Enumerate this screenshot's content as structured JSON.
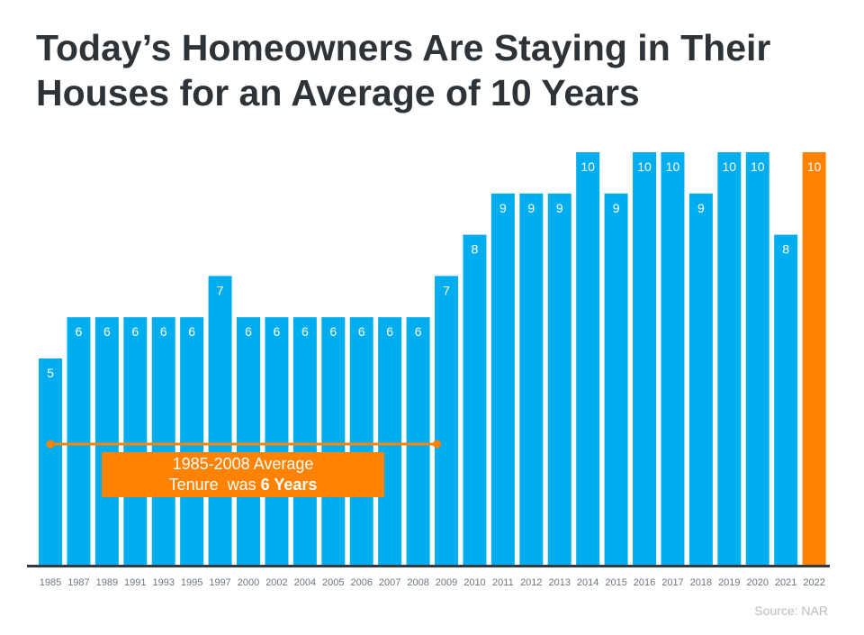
{
  "title_line1": "Today’s Homeowners Are Staying in Their",
  "title_line2": "Houses for an Average of 10 Years",
  "source": "Source: NAR",
  "annotation": {
    "line1": "1985-2008 Average",
    "line2_prefix": "Tenure  was ",
    "line2_bold": "6 Years",
    "average_value": 6,
    "range": [
      "1985",
      "2008"
    ]
  },
  "colors": {
    "bar": "#00aeef",
    "highlight": "#ff8200",
    "axis": "#333940",
    "title": "#2e3338"
  },
  "chart_data": {
    "type": "bar",
    "categories": [
      "1985",
      "1987",
      "1989",
      "1991",
      "1993",
      "1995",
      "1997",
      "2000",
      "2002",
      "2004",
      "2005",
      "2006",
      "2007",
      "2008",
      "2009",
      "2010",
      "2011",
      "2012",
      "2013",
      "2014",
      "2015",
      "2016",
      "2017",
      "2018",
      "2019",
      "2020",
      "2021",
      "2022"
    ],
    "values": [
      5,
      6,
      6,
      6,
      6,
      6,
      7,
      6,
      6,
      6,
      6,
      6,
      6,
      6,
      7,
      8,
      9,
      9,
      9,
      10,
      9,
      10,
      10,
      9,
      10,
      10,
      8,
      10
    ],
    "highlight_category": "2022",
    "ylim": [
      0,
      10
    ],
    "grid": false,
    "data_labels": true
  }
}
